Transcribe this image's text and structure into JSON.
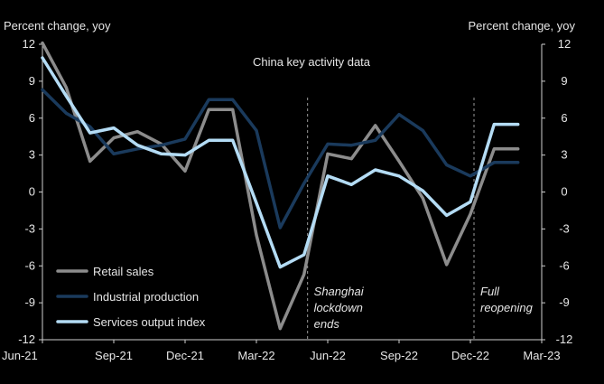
{
  "chart_data": {
    "type": "line",
    "title": "China key activity data",
    "ylabel_left": "Percent change, yoy",
    "ylabel_right": "Percent change, yoy",
    "ylim": [
      -12,
      12
    ],
    "yticks": [
      "12",
      "9",
      "6",
      "3",
      "0",
      "-3",
      "-6",
      "-9",
      "-12"
    ],
    "xlim": [
      "2021-06",
      "2023-03"
    ],
    "xticks": [
      "Jun-21",
      "Sep-21",
      "Dec-21",
      "Mar-22",
      "Jun-22",
      "Sep-22",
      "Dec-22",
      "Mar-23"
    ],
    "x": [
      "2021-06",
      "2021-07",
      "2021-08",
      "2021-09",
      "2021-10",
      "2021-11",
      "2021-12",
      "2022-01",
      "2022-02",
      "2022-03",
      "2022-04",
      "2022-05",
      "2022-06",
      "2022-07",
      "2022-08",
      "2022-09",
      "2022-10",
      "2022-11",
      "2022-12",
      "2023-01",
      "2023-02"
    ],
    "series": [
      {
        "name": "Retail sales",
        "color": "#8c8c8c",
        "values": [
          12.1,
          8.5,
          2.5,
          4.4,
          4.9,
          3.9,
          1.7,
          6.7,
          6.7,
          -3.5,
          -11.1,
          -6.7,
          3.1,
          2.7,
          5.4,
          2.5,
          -0.5,
          -5.9,
          -1.8,
          3.5,
          3.5
        ]
      },
      {
        "name": "Industrial production",
        "color": "#1a3a5c",
        "values": [
          8.3,
          6.4,
          5.3,
          3.1,
          3.5,
          3.8,
          4.3,
          7.5,
          7.5,
          5.0,
          -2.9,
          0.7,
          3.9,
          3.8,
          4.2,
          6.3,
          5.0,
          2.2,
          1.3,
          2.4,
          2.4
        ]
      },
      {
        "name": "Services output index",
        "color": "#b4dcf5",
        "values": [
          10.9,
          7.8,
          4.8,
          5.2,
          3.8,
          3.1,
          3.0,
          4.2,
          4.2,
          -0.9,
          -6.1,
          -5.1,
          1.3,
          0.6,
          1.8,
          1.3,
          0.1,
          -1.9,
          -0.8,
          5.5,
          5.5
        ]
      }
    ],
    "annotations": [
      {
        "label": [
          "Shanghai",
          "lockdown",
          "ends"
        ],
        "x": "2022-05"
      },
      {
        "label": [
          "Full",
          "reopening"
        ],
        "x": "2022-12"
      }
    ],
    "legend_position": "bottom-left",
    "grid": false
  }
}
